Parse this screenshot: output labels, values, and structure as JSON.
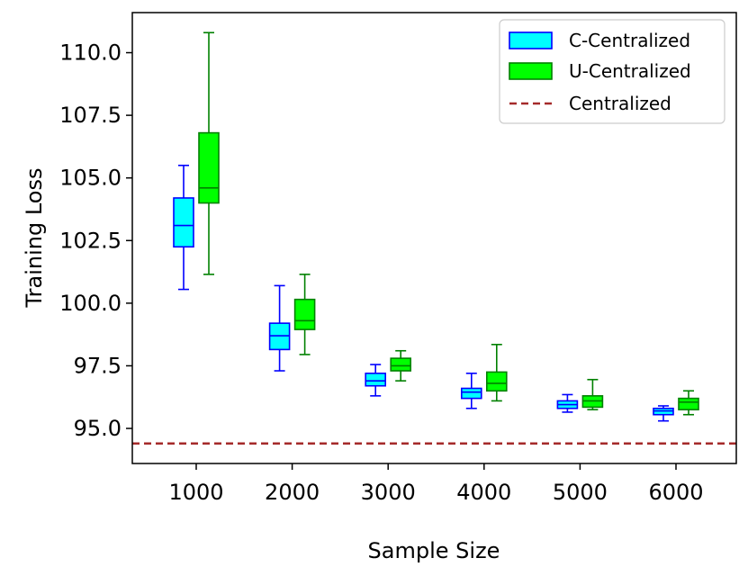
{
  "chart_data": {
    "type": "box",
    "title": "",
    "xlabel": "Sample Size",
    "ylabel": "Training Loss",
    "categories": [
      "1000",
      "2000",
      "3000",
      "4000",
      "5000",
      "6000"
    ],
    "ylim": [
      93.6,
      111.6
    ],
    "yticks": [
      "95.0",
      "97.5",
      "100.0",
      "102.5",
      "105.0",
      "107.5",
      "110.0"
    ],
    "grid": false,
    "legend_position": "top-right",
    "series": [
      {
        "name": "C-Centralized",
        "fill": "#00ffff",
        "edge": "#0000ff",
        "boxes": [
          {
            "min": 100.55,
            "q1": 102.25,
            "median": 103.1,
            "q3": 104.2,
            "max": 105.5
          },
          {
            "min": 97.3,
            "q1": 98.15,
            "median": 98.7,
            "q3": 99.2,
            "max": 100.7
          },
          {
            "min": 96.3,
            "q1": 96.7,
            "median": 96.9,
            "q3": 97.2,
            "max": 97.55
          },
          {
            "min": 95.8,
            "q1": 96.2,
            "median": 96.45,
            "q3": 96.6,
            "max": 97.2
          },
          {
            "min": 95.65,
            "q1": 95.8,
            "median": 95.95,
            "q3": 96.1,
            "max": 96.35
          },
          {
            "min": 95.3,
            "q1": 95.55,
            "median": 95.7,
            "q3": 95.8,
            "max": 95.9
          }
        ]
      },
      {
        "name": "U-Centralized",
        "fill": "#00ff00",
        "edge": "#008000",
        "boxes": [
          {
            "min": 101.15,
            "q1": 104.0,
            "median": 104.6,
            "q3": 106.8,
            "max": 110.8
          },
          {
            "min": 97.95,
            "q1": 98.95,
            "median": 99.3,
            "q3": 100.15,
            "max": 101.15
          },
          {
            "min": 96.9,
            "q1": 97.3,
            "median": 97.5,
            "q3": 97.8,
            "max": 98.1
          },
          {
            "min": 96.1,
            "q1": 96.5,
            "median": 96.8,
            "q3": 97.25,
            "max": 98.35
          },
          {
            "min": 95.75,
            "q1": 95.85,
            "median": 96.1,
            "q3": 96.3,
            "max": 96.95
          },
          {
            "min": 95.55,
            "q1": 95.75,
            "median": 96.05,
            "q3": 96.2,
            "max": 96.5
          }
        ]
      }
    ],
    "reference_line": {
      "name": "Centralized",
      "value": 94.4,
      "color": "#a52a2a",
      "style": "dashed"
    }
  }
}
